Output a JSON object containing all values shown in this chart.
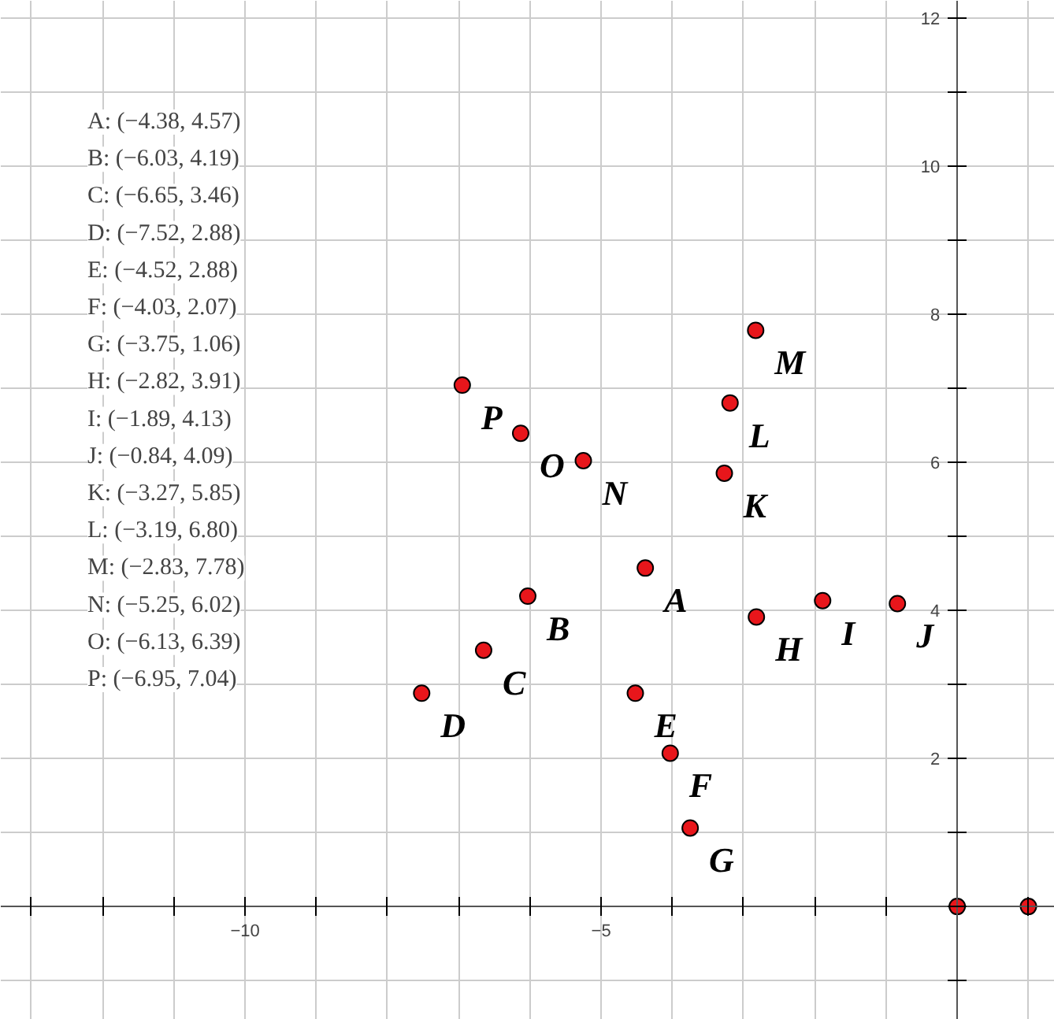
{
  "chart_data": {
    "type": "scatter",
    "x": [
      -4.38,
      -6.03,
      -6.65,
      -7.52,
      -4.52,
      -4.03,
      -3.75,
      -2.82,
      -1.89,
      -0.84,
      -3.27,
      -3.19,
      -2.83,
      -5.25,
      -6.13,
      -6.95,
      0,
      1
    ],
    "series": [
      {
        "color": "#e8161b",
        "values": [
          4.57,
          4.19,
          3.46,
          2.88,
          2.88,
          2.07,
          1.06,
          3.91,
          4.13,
          4.09,
          5.85,
          6.8,
          7.78,
          6.02,
          6.39,
          7.04,
          0,
          0
        ]
      }
    ],
    "marker": "circle",
    "grid": true,
    "xlim": [
      -13.43,
      1.37
    ],
    "ylim": [
      -1.53,
      12.23
    ],
    "xticks": [
      {
        "value": -13,
        "label": null
      },
      {
        "value": -12,
        "label": null
      },
      {
        "value": -11,
        "label": null
      },
      -10,
      {
        "value": -9,
        "label": null
      },
      {
        "value": -8,
        "label": null
      },
      {
        "value": -7,
        "label": null
      },
      {
        "value": -6,
        "label": null
      },
      -5,
      {
        "value": -4,
        "label": null
      },
      {
        "value": -3,
        "label": null
      },
      {
        "value": -2,
        "label": null
      },
      {
        "value": -1,
        "label": null
      },
      {
        "value": 0,
        "label": null
      },
      {
        "value": 1,
        "label": null
      }
    ],
    "yticks": [
      {
        "value": -1,
        "label": null
      },
      {
        "value": 0,
        "label": null
      },
      {
        "value": 1,
        "label": null
      },
      2,
      {
        "value": 3,
        "label": null
      },
      4,
      {
        "value": 5,
        "label": null
      },
      6,
      {
        "value": 7,
        "label": null
      },
      8,
      {
        "value": 9,
        "label": null
      },
      10,
      {
        "value": 11,
        "label": null
      },
      12
    ],
    "annotations": [
      "A: (−4.38, 4.57)",
      "B: (−6.03, 4.19)",
      "C: (−6.65, 3.46)",
      "D: (−7.52, 2.88)",
      "E: (−4.52, 2.88)",
      "F: (−4.03, 2.07)",
      "G: (−3.75, 1.06)",
      "H: (−2.82, 3.91)",
      "I: (−1.89, 4.13)",
      "J: (−0.84, 4.09)",
      "K: (−3.27, 5.85)",
      "L: (−3.19, 6.80)",
      "M: (−2.83, 7.78)",
      "N: (−5.25, 6.02)",
      "O: (−6.13, 6.39)",
      "P: (−6.95, 7.04)",
      {
        "text": "A",
        "x": -4.38,
        "y": 4.57
      },
      {
        "text": "B",
        "x": -6.03,
        "y": 4.19
      },
      {
        "text": "C",
        "x": -6.65,
        "y": 3.46
      },
      {
        "text": "D",
        "x": -7.52,
        "y": 2.88
      },
      {
        "text": "E",
        "x": -4.52,
        "y": 2.88
      },
      {
        "text": "F",
        "x": -4.03,
        "y": 2.07
      },
      {
        "text": "G",
        "x": -3.75,
        "y": 1.06
      },
      {
        "text": "H",
        "x": -2.82,
        "y": 3.91
      },
      {
        "text": "I",
        "x": -1.89,
        "y": 4.13
      },
      {
        "text": "J",
        "x": -0.84,
        "y": 4.09
      },
      {
        "text": "K",
        "x": -3.27,
        "y": 5.85
      },
      {
        "text": "L",
        "x": -3.19,
        "y": 6.8
      },
      {
        "text": "M",
        "x": -2.83,
        "y": 7.78
      },
      {
        "text": "N",
        "x": -5.25,
        "y": 6.02
      },
      {
        "text": "O",
        "x": -6.13,
        "y": 6.39
      },
      {
        "text": "P",
        "x": -6.95,
        "y": 7.04
      }
    ]
  }
}
